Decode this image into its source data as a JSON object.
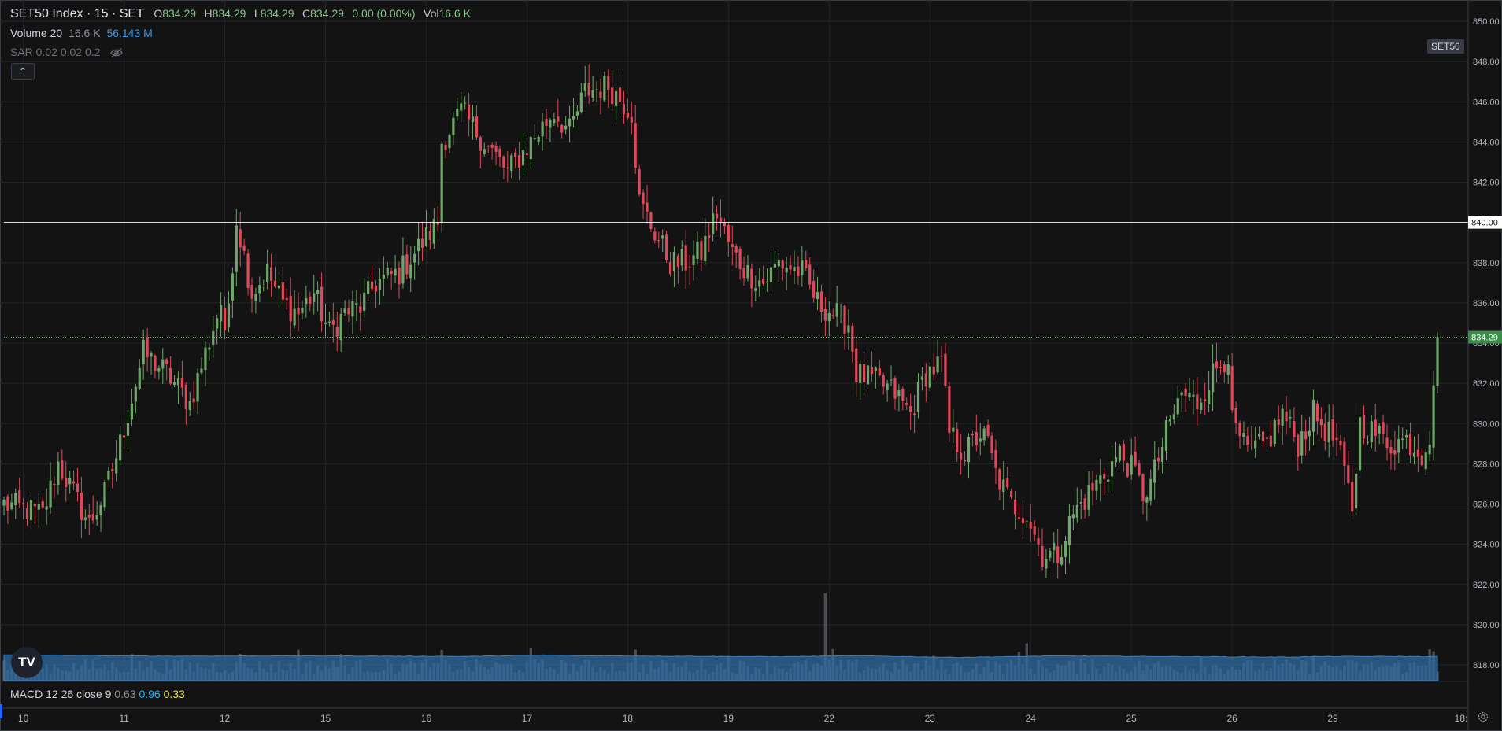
{
  "header": {
    "title": "SET50 Index · 15 · SET",
    "open_label": "O",
    "open_value": "834.29",
    "high_label": "H",
    "high_value": "834.29",
    "low_label": "L",
    "low_value": "834.29",
    "close_label": "C",
    "close_value": "834.29",
    "change": "0.00 (0.00%)",
    "vol_label": "Vol",
    "vol_value": "16.6 K"
  },
  "volume_legend": {
    "label": "Volume 20",
    "value1": "16.6 K",
    "value2": "56.143 M"
  },
  "sar_legend": {
    "label": "SAR 0.02 0.02 0.2",
    "icon": "eye-hidden-icon"
  },
  "macd_legend": {
    "label": "MACD 12 26 close 9",
    "hist": "0.63",
    "macd": "0.96",
    "signal": "0.33"
  },
  "symbol_tag": "SET50",
  "last_price_tag": "834.29",
  "crosshair_price_tag": "840.00",
  "logo_text": "TV",
  "colors": {
    "background": "#131313",
    "up": "#6fa66a",
    "down": "#e0485a",
    "volume_ma": "#2f6ca3",
    "volume_bar": "#4a4d55",
    "grid": "#222428",
    "price_line": "#81c784",
    "macd": "#29b6f6",
    "signal": "#f0e34d"
  },
  "chart_data": {
    "type": "candlestick",
    "title": "SET50 Index · 15 · SET",
    "y_ticks": [
      "850.00",
      "848.00",
      "846.00",
      "844.00",
      "842.00",
      "840.00",
      "838.00",
      "836.00",
      "834.00",
      "832.00",
      "830.00",
      "828.00",
      "826.00",
      "824.00",
      "822.00",
      "820.00",
      "818.00"
    ],
    "ylim": [
      817.2,
      850.8
    ],
    "x_ticks": [
      "10",
      "11",
      "12",
      "15",
      "16",
      "17",
      "18",
      "19",
      "22",
      "23",
      "24",
      "25",
      "26",
      "29",
      "18:"
    ],
    "horizontal_line": 840.0,
    "last_price": 834.29,
    "grid": true,
    "anchors": [
      [
        0,
        826.0
      ],
      [
        10,
        825.5
      ],
      [
        14,
        828.0
      ],
      [
        18,
        826.5
      ],
      [
        22,
        825.0
      ],
      [
        26,
        826.5
      ],
      [
        30,
        829.0
      ],
      [
        36,
        833.5
      ],
      [
        42,
        832.5
      ],
      [
        48,
        831.0
      ],
      [
        52,
        833.5
      ],
      [
        56,
        836.0
      ],
      [
        57,
        834.0
      ],
      [
        60,
        840.2
      ],
      [
        64,
        836.5
      ],
      [
        68,
        837.5
      ],
      [
        72,
        836.0
      ],
      [
        76,
        835.5
      ],
      [
        80,
        836.5
      ],
      [
        84,
        834.5
      ],
      [
        88,
        835.5
      ],
      [
        92,
        835.8
      ],
      [
        96,
        837.0
      ],
      [
        102,
        837.5
      ],
      [
        108,
        839.0
      ],
      [
        112,
        840.0
      ],
      [
        113,
        844.0
      ],
      [
        118,
        845.5
      ],
      [
        122,
        844.5
      ],
      [
        126,
        843.5
      ],
      [
        130,
        842.5
      ],
      [
        134,
        843.5
      ],
      [
        138,
        844.5
      ],
      [
        142,
        845.5
      ],
      [
        146,
        844.5
      ],
      [
        150,
        846.5
      ],
      [
        156,
        846.8
      ],
      [
        162,
        845.5
      ],
      [
        164,
        841.0
      ],
      [
        168,
        839.5
      ],
      [
        172,
        838.0
      ],
      [
        176,
        838.0
      ],
      [
        180,
        838.5
      ],
      [
        184,
        840.5
      ],
      [
        188,
        838.5
      ],
      [
        192,
        837.5
      ],
      [
        196,
        837.0
      ],
      [
        200,
        838.0
      ],
      [
        206,
        837.5
      ],
      [
        210,
        836.0
      ],
      [
        214,
        835.5
      ],
      [
        218,
        835.0
      ],
      [
        220,
        832.5
      ],
      [
        226,
        832.0
      ],
      [
        230,
        831.5
      ],
      [
        234,
        830.5
      ],
      [
        238,
        832.5
      ],
      [
        242,
        833.0
      ],
      [
        244,
        829.5
      ],
      [
        248,
        828.5
      ],
      [
        252,
        829.5
      ],
      [
        254,
        829.0
      ],
      [
        256,
        827.5
      ],
      [
        260,
        826.0
      ],
      [
        264,
        825.5
      ],
      [
        268,
        823.5
      ],
      [
        272,
        823.5
      ],
      [
        276,
        825.5
      ],
      [
        280,
        826.5
      ],
      [
        284,
        827.5
      ],
      [
        288,
        828.5
      ],
      [
        292,
        827.5
      ],
      [
        294,
        826.5
      ],
      [
        296,
        827.0
      ],
      [
        300,
        829.5
      ],
      [
        304,
        831.5
      ],
      [
        308,
        831.0
      ],
      [
        312,
        832.5
      ],
      [
        316,
        833.5
      ],
      [
        317,
        830.0
      ],
      [
        321,
        828.5
      ],
      [
        326,
        829.0
      ],
      [
        330,
        830.5
      ],
      [
        334,
        829.0
      ],
      [
        338,
        830.5
      ],
      [
        342,
        829.5
      ],
      [
        344,
        829.0
      ],
      [
        346,
        827.5
      ],
      [
        348,
        825.8
      ],
      [
        350,
        830.0
      ],
      [
        354,
        829.5
      ],
      [
        358,
        829.0
      ],
      [
        362,
        829.2
      ],
      [
        366,
        828.5
      ],
      [
        368,
        829.5
      ],
      [
        369,
        832.2
      ],
      [
        370,
        834.29
      ]
    ],
    "volume_ma_anchors": [
      [
        0,
        18.8
      ],
      [
        40,
        17.8
      ],
      [
        80,
        18.0
      ],
      [
        120,
        17.6
      ],
      [
        140,
        18.6
      ],
      [
        150,
        18.1
      ],
      [
        200,
        17.4
      ],
      [
        220,
        18.1
      ],
      [
        230,
        17.6
      ],
      [
        245,
        16.9
      ],
      [
        260,
        17.4
      ],
      [
        270,
        18.0
      ],
      [
        300,
        17.5
      ],
      [
        330,
        17.1
      ],
      [
        340,
        17.5
      ],
      [
        360,
        17.6
      ],
      [
        370,
        17.4
      ]
    ],
    "volume_scale_note": "volume bars share the lower price scale area (values shown in K)",
    "volume_spikes": [
      [
        33,
        16.0
      ],
      [
        46,
        13.6
      ],
      [
        61,
        16.2
      ],
      [
        76,
        18.7
      ],
      [
        87,
        16.1
      ],
      [
        113,
        18.6
      ],
      [
        136,
        19.5
      ],
      [
        163,
        18.8
      ],
      [
        187,
        14.6
      ],
      [
        212,
        53.0
      ],
      [
        214,
        19.2
      ],
      [
        240,
        15.0
      ],
      [
        262,
        17.5
      ],
      [
        264,
        22.5
      ],
      [
        281,
        12.5
      ],
      [
        309,
        14.0
      ],
      [
        338,
        15.0
      ],
      [
        368,
        19.0
      ],
      [
        369,
        17.8
      ]
    ]
  }
}
